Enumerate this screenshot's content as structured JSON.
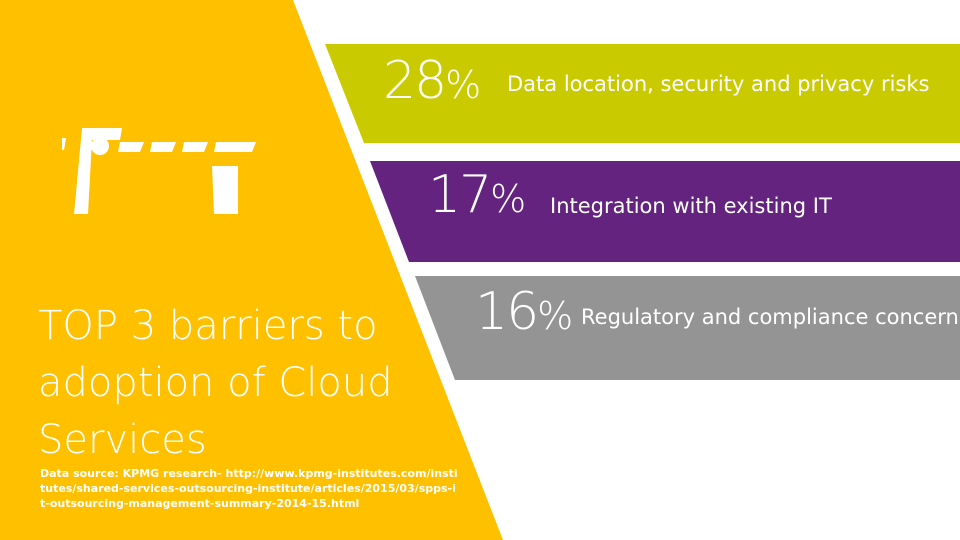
{
  "colors": {
    "yellow": "#ffc000",
    "band_1": "#c9cb00",
    "band_2": "#652380",
    "band_3": "#949494",
    "text": "#ffffff"
  },
  "logo_icon": "kpmg-style-logo-icon",
  "title": "TOP 3 barriers to adoption of Cloud Services",
  "source": "Data source: KPMG research- http://www.kpmg-institutes.com/institutes/shared-services-outsourcing-institute/articles/2015/03/spps-it-outsourcing-management-summary-2014-15.html",
  "barriers": [
    {
      "percent": "28",
      "sign": "%",
      "label": "Data location, security and privacy risks"
    },
    {
      "percent": "17",
      "sign": "%",
      "label": "Integration with existing IT"
    },
    {
      "percent": "16",
      "sign": "%",
      "label": "Regulatory and compliance concerns"
    }
  ]
}
